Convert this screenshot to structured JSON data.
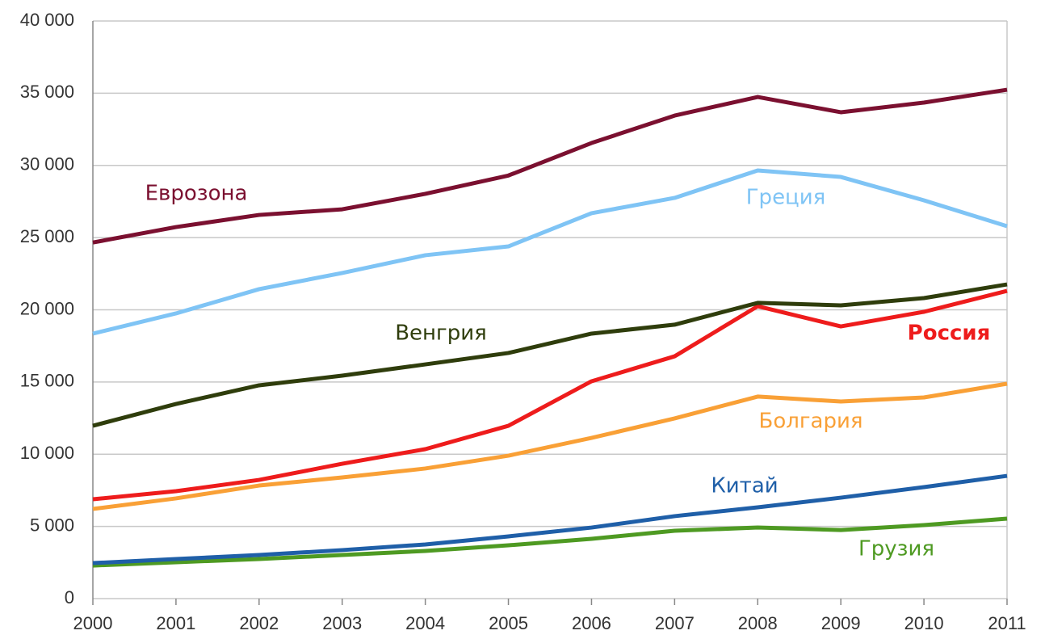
{
  "chart_data": {
    "type": "line",
    "x": [
      2000,
      2001,
      2002,
      2003,
      2004,
      2005,
      2006,
      2007,
      2008,
      2009,
      2010,
      2011
    ],
    "xlim": [
      2000,
      2011
    ],
    "xticks": [
      2000,
      2001,
      2002,
      2003,
      2004,
      2005,
      2006,
      2007,
      2008,
      2009,
      2010,
      2011
    ],
    "ylim": [
      0,
      40000
    ],
    "yticks": [
      0,
      {
        "value": 5000,
        "label": "5 000"
      },
      {
        "value": 10000,
        "label": "10 000"
      },
      {
        "value": 15000,
        "label": "15 000"
      },
      {
        "value": 20000,
        "label": "20 000"
      },
      {
        "value": 25000,
        "label": "25 000"
      },
      {
        "value": 30000,
        "label": "30 000"
      },
      {
        "value": 35000,
        "label": "35 000"
      },
      {
        "value": 40000,
        "label": "40 000"
      }
    ],
    "grid": true,
    "series": [
      {
        "name": "Грузия",
        "color": "#4e9a22",
        "values": [
          2290,
          2520,
          2740,
          3020,
          3300,
          3690,
          4140,
          4700,
          4920,
          4750,
          5090,
          5540
        ]
      },
      {
        "name": "Китай",
        "color": "#1f5fa8",
        "values": [
          2460,
          2740,
          3020,
          3360,
          3750,
          4310,
          4920,
          5710,
          6320,
          6990,
          7720,
          8500
        ]
      },
      {
        "name": "Болгария",
        "color": "#f9a036",
        "values": [
          6210,
          6940,
          7830,
          8390,
          9010,
          9900,
          11130,
          12480,
          13990,
          13650,
          13930,
          14880
        ]
      },
      {
        "name": "Россия",
        "color": "#ee1c1c",
        "values": [
          6880,
          7440,
          8220,
          9340,
          10350,
          11970,
          15050,
          16780,
          20250,
          18850,
          19860,
          21310
        ]
      },
      {
        "name": "Венгрия",
        "color": "#2f3d0c",
        "values": [
          11970,
          13480,
          14770,
          15440,
          16220,
          17010,
          18350,
          18970,
          20480,
          20310,
          20810,
          21760
        ]
      },
      {
        "name": "Греция",
        "color": "#7fc4f5",
        "values": [
          18350,
          19750,
          21430,
          22550,
          23780,
          24390,
          26690,
          27750,
          29650,
          29200,
          27580,
          25790
        ]
      },
      {
        "name": "Еврозона",
        "color": "#7b1030",
        "values": [
          24660,
          25730,
          26570,
          26960,
          28030,
          29300,
          31550,
          33450,
          34740,
          33680,
          34350,
          35240
        ]
      }
    ]
  }
}
